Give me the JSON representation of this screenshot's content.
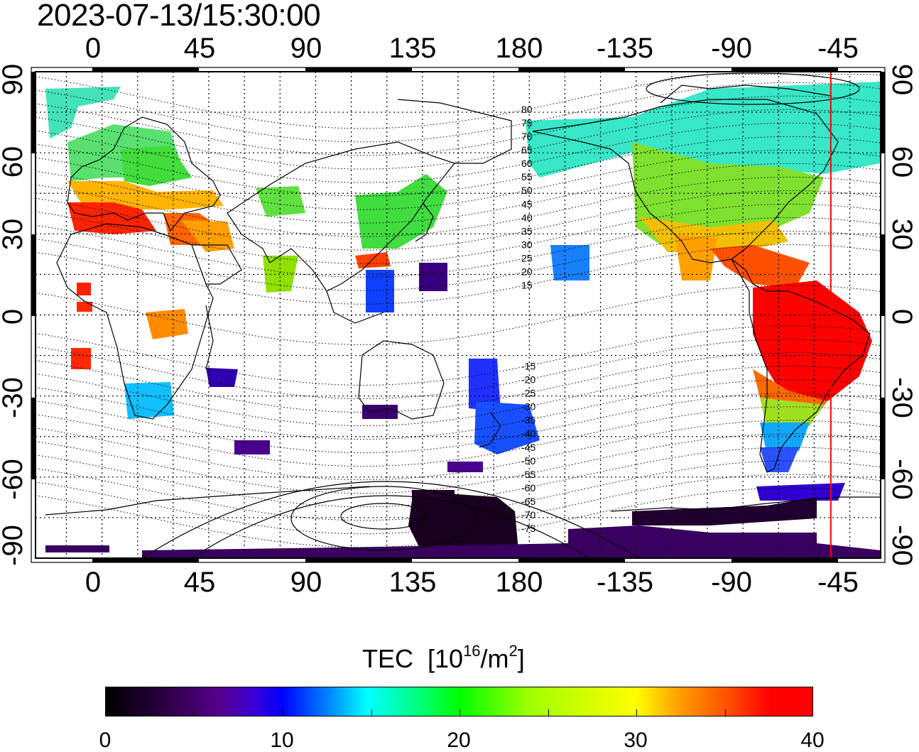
{
  "timestamp": "2023-07-13/15:30:00",
  "axes": {
    "longitude_ticks": [
      "0",
      "45",
      "90",
      "135",
      "180",
      "-135",
      "-90",
      "-45"
    ],
    "latitude_ticks": [
      "90",
      "60",
      "30",
      "0",
      "-30",
      "-60",
      "-90"
    ]
  },
  "map": {
    "central_meridian": 150,
    "lon_range": [
      -28,
      328
    ],
    "lat_range": [
      -90,
      90
    ],
    "grid": "dotted every 15 degrees",
    "gridline_labels_north": [
      "80",
      "75",
      "70",
      "65",
      "60",
      "55",
      "50",
      "45",
      "40",
      "35",
      "30",
      "25",
      "20",
      "15"
    ],
    "gridline_labels_south": [
      "-15",
      "-20",
      "-25",
      "-30",
      "-35",
      "-40",
      "-45",
      "-50",
      "-55",
      "-60",
      "-65",
      "-70",
      "-75"
    ],
    "terminator_marker_longitude": -53,
    "marker_color": "#ff0000"
  },
  "colorbar": {
    "title": "TEC",
    "unit_prefix": "[10",
    "unit_exponent": "16",
    "unit_mid": "/m",
    "unit_exponent2": "2",
    "unit_suffix": "]",
    "min": 0,
    "max": 40,
    "tick_labels": [
      "0",
      "10",
      "20",
      "30",
      "40"
    ]
  },
  "tec_regions": [
    {
      "name": "europe-north",
      "color": "#30e0a0"
    },
    {
      "name": "europe-south",
      "color": "#ff3000"
    },
    {
      "name": "north-america",
      "color": "#70e040"
    },
    {
      "name": "south-america",
      "color": "#ff0000"
    },
    {
      "name": "antarctica",
      "color": "#200030"
    },
    {
      "name": "new-zealand",
      "color": "#2050ff"
    },
    {
      "name": "east-asia",
      "color": "#40e040"
    }
  ]
}
